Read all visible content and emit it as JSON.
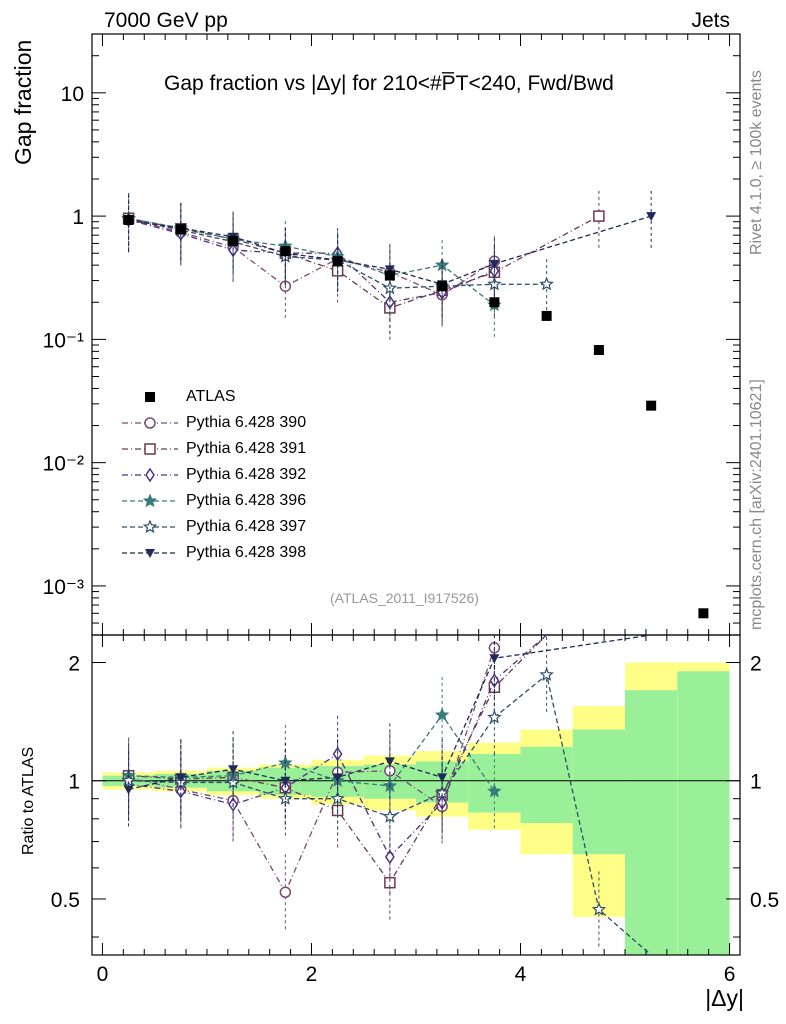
{
  "header": {
    "left": "7000 GeV pp",
    "right": "Jets"
  },
  "side_labels": {
    "rivet": "Rivet 4.1.0, ≥ 100k events",
    "mcplots": "mcplots.cern.ch [arXiv:2401.10621]"
  },
  "analysis_tag": "(ATLAS_2011_I917526)",
  "chart_data": {
    "type": "scatter",
    "title": "Gap fraction vs |Δy| for 210<#P̅T<240, Fwd/Bwd",
    "xlabel": "|Δy|",
    "ylabel_top": "Gap fraction",
    "ylabel_bottom": "Ratio to ATLAS",
    "xlim": [
      -0.1,
      6.1
    ],
    "ylim_top": [
      0.0004,
      30
    ],
    "ylim_bottom": [
      0.36,
      2.35
    ],
    "x_ticks": [
      "0",
      "2",
      "4",
      "6"
    ],
    "y_ticks_top": [
      "10",
      "1",
      "10⁻¹",
      "10⁻²",
      "10⁻³"
    ],
    "y_ticks_bottom": [
      "0.5",
      "1",
      "2"
    ],
    "x": [
      0.25,
      0.75,
      1.25,
      1.75,
      2.25,
      2.75,
      3.25,
      3.75,
      4.25,
      4.75,
      5.25,
      5.75
    ],
    "atlas": {
      "name": "ATLAS",
      "values": [
        0.93,
        0.78,
        0.63,
        0.52,
        0.43,
        0.33,
        0.27,
        0.2,
        0.155,
        0.082,
        0.029,
        0.0006
      ],
      "band_outer": [
        0.05,
        0.06,
        0.08,
        0.1,
        0.13,
        0.16,
        0.19,
        0.25,
        0.35,
        0.55,
        1.0,
        1.0
      ],
      "band_inner": [
        0.03,
        0.04,
        0.06,
        0.08,
        0.09,
        0.1,
        0.12,
        0.17,
        0.22,
        0.35,
        0.7,
        0.9
      ]
    },
    "series": [
      {
        "name": "Pythia 6.428 390",
        "color": "#7a4a72",
        "marker": "circle-open",
        "values": [
          0.95,
          0.74,
          0.56,
          0.27,
          0.45,
          0.35,
          0.23,
          0.43,
          null,
          null,
          null,
          null
        ],
        "ratio": [
          1.02,
          0.95,
          0.89,
          0.52,
          1.05,
          1.06,
          0.86,
          2.18,
          null,
          null,
          null,
          null
        ]
      },
      {
        "name": "Pythia 6.428 391",
        "color": "#6b3a4e",
        "marker": "square-open",
        "values": [
          0.96,
          0.79,
          0.65,
          0.5,
          0.36,
          0.18,
          0.25,
          0.35,
          null,
          1.0,
          null,
          null
        ],
        "ratio": [
          1.03,
          1.01,
          1.02,
          0.96,
          0.84,
          0.55,
          0.92,
          1.73,
          2.6,
          null,
          null,
          null
        ]
      },
      {
        "name": "Pythia 6.428 392",
        "color": "#503080",
        "marker": "diamond-open",
        "values": [
          0.93,
          0.72,
          0.53,
          0.5,
          0.5,
          0.2,
          0.24,
          0.36,
          null,
          null,
          null,
          null
        ],
        "ratio": [
          0.98,
          0.94,
          0.87,
          0.96,
          1.17,
          0.64,
          0.88,
          1.8,
          2.7,
          null,
          null,
          null
        ]
      },
      {
        "name": "Pythia 6.428 396",
        "color": "#3a7a78",
        "marker": "star-filled",
        "values": [
          0.96,
          0.8,
          0.65,
          0.57,
          0.47,
          0.33,
          0.4,
          0.19,
          null,
          null,
          null,
          null
        ],
        "ratio": [
          1.03,
          1.02,
          1.03,
          1.11,
          1.0,
          0.97,
          1.47,
          0.94,
          null,
          null,
          null,
          null
        ]
      },
      {
        "name": "Pythia 6.428 397",
        "color": "#2e4e68",
        "marker": "star-open",
        "values": [
          0.95,
          0.77,
          0.62,
          0.47,
          0.44,
          0.26,
          0.27,
          0.28,
          0.28,
          null,
          null,
          null
        ],
        "ratio": [
          1.0,
          0.99,
          0.99,
          0.9,
          0.9,
          0.81,
          0.93,
          1.45,
          1.86,
          0.47,
          0.3,
          null
        ]
      },
      {
        "name": "Pythia 6.428 398",
        "color": "#1e2a5a",
        "marker": "triangle-down",
        "values": [
          0.92,
          0.8,
          0.68,
          0.5,
          0.44,
          0.37,
          0.28,
          0.41,
          null,
          null,
          1.0,
          null
        ],
        "ratio": [
          0.95,
          1.02,
          1.07,
          1.0,
          1.02,
          1.12,
          1.02,
          2.05,
          null,
          null,
          2.6,
          null
        ]
      }
    ]
  }
}
